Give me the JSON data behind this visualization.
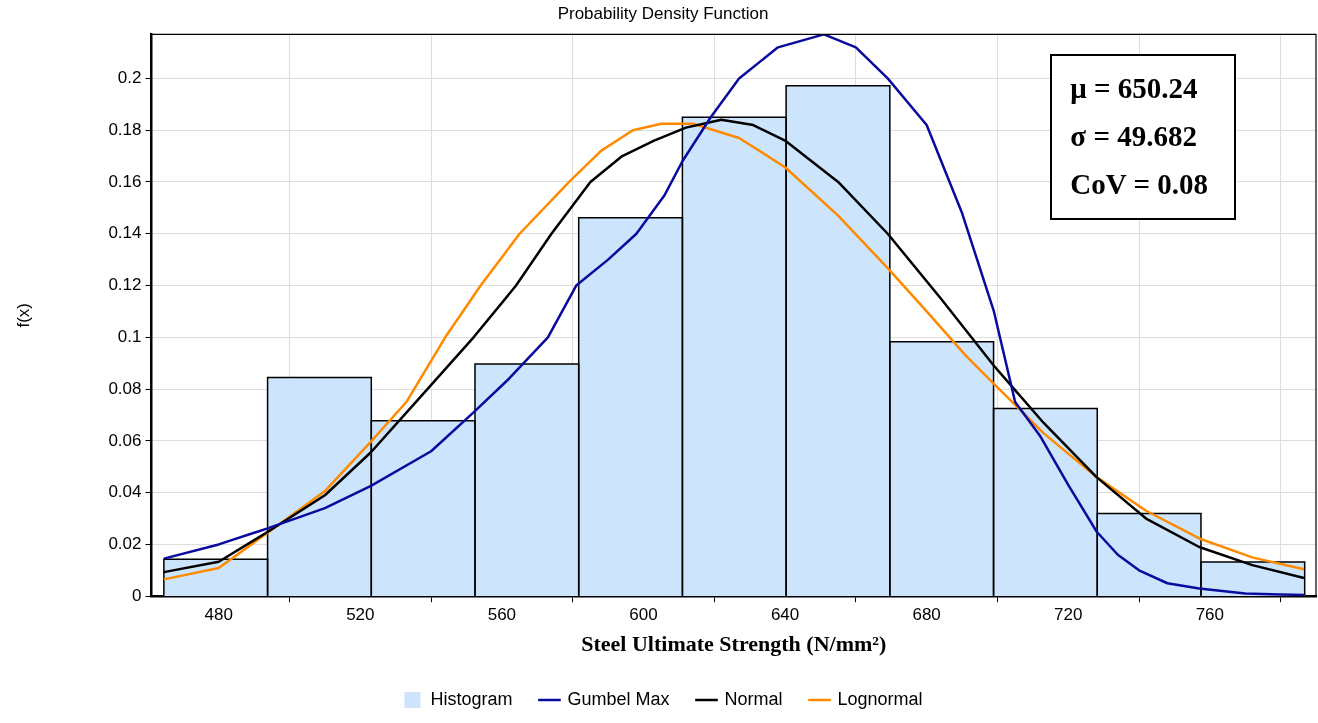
{
  "chart_data": {
    "type": "histogram",
    "title": "Probability Density Function",
    "xlabel": "Steel Ultimate Strength (N/mm²)",
    "ylabel": "f(x)",
    "bins": [
      464.5,
      493.8,
      523.1,
      552.4,
      581.7,
      611.0,
      640.3,
      669.6,
      698.9,
      728.2,
      757.5,
      786.8
    ],
    "series": [
      {
        "name": "Histogram",
        "type": "histogram",
        "color": "#cce5fc",
        "values": [
          0.0143,
          0.0845,
          0.0678,
          0.0897,
          0.1462,
          0.185,
          0.1972,
          0.0983,
          0.0725,
          0.0319,
          0.0132
        ]
      },
      {
        "name": "Gumbel Max",
        "type": "line",
        "color": "#0a0a9e",
        "x": [
          464.5,
          480,
          494,
          510,
          523,
          540,
          552,
          562,
          573,
          581,
          590,
          598,
          606,
          611,
          619,
          627,
          638,
          651,
          660,
          669,
          680,
          690,
          699,
          705,
          712,
          720,
          728,
          734,
          740,
          748,
          757,
          770,
          786.6
        ],
        "values": [
          0.0145,
          0.02,
          0.0263,
          0.034,
          0.0426,
          0.056,
          0.071,
          0.084,
          0.1,
          0.12,
          0.13,
          0.14,
          0.155,
          0.168,
          0.185,
          0.2,
          0.212,
          0.217,
          0.212,
          0.2,
          0.182,
          0.148,
          0.11,
          0.075,
          0.062,
          0.043,
          0.025,
          0.016,
          0.01,
          0.005,
          0.003,
          0.001,
          0.0005
        ]
      },
      {
        "name": "Normal",
        "type": "line",
        "color": "#000000",
        "x": [
          464.5,
          480,
          494,
          510,
          523,
          537,
          552,
          564,
          574,
          585,
          594,
          603,
          612,
          622,
          631,
          640,
          655,
          669,
          684,
          699,
          713,
          728,
          742,
          757,
          772,
          786.6
        ],
        "values": [
          0.0093,
          0.0133,
          0.025,
          0.039,
          0.0556,
          0.077,
          0.1,
          0.12,
          0.14,
          0.16,
          0.17,
          0.176,
          0.181,
          0.184,
          0.182,
          0.176,
          0.16,
          0.14,
          0.115,
          0.089,
          0.067,
          0.046,
          0.03,
          0.019,
          0.012,
          0.007
        ]
      },
      {
        "name": "Lognormal",
        "type": "line",
        "color": "#ff8a00",
        "x": [
          464.5,
          480,
          494,
          510,
          523,
          533,
          544,
          554,
          565,
          579,
          588,
          597,
          605,
          614,
          627,
          640,
          655,
          669,
          680,
          691,
          699,
          713,
          728,
          742,
          757,
          772,
          786.6
        ],
        "values": [
          0.0065,
          0.0109,
          0.0247,
          0.0406,
          0.0597,
          0.075,
          0.1,
          0.12,
          0.14,
          0.16,
          0.172,
          0.18,
          0.1825,
          0.1825,
          0.177,
          0.1657,
          0.147,
          0.1267,
          0.11,
          0.093,
          0.082,
          0.063,
          0.046,
          0.033,
          0.0223,
          0.015,
          0.0104
        ]
      }
    ],
    "xlim": [
      461,
      790
    ],
    "xticks": [
      480,
      520,
      560,
      600,
      640,
      680,
      720,
      760
    ],
    "ylim": [
      0,
      0.217
    ],
    "yticks": [
      0,
      0.02,
      0.04,
      0.06,
      0.08,
      0.1,
      0.12,
      0.14,
      0.16,
      0.18,
      0.2
    ],
    "grid": true,
    "legend": "bottom",
    "marker": "none",
    "line_style": "solid",
    "annotations": [
      "μ = 650.24",
      "σ = 49.682",
      "CoV = 0.08"
    ]
  }
}
